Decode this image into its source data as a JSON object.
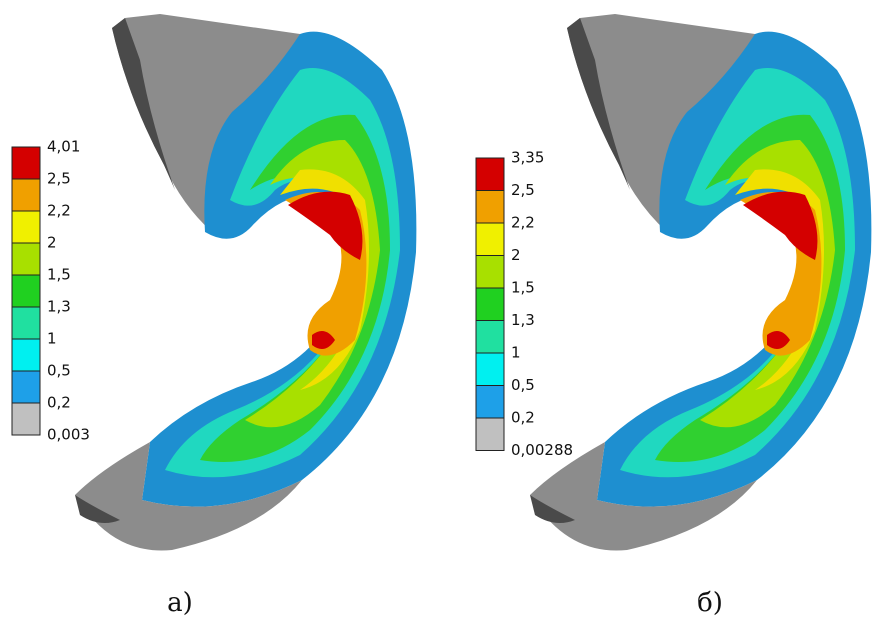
{
  "panels": [
    {
      "caption": "а)",
      "legend": [
        "4,01",
        "2,5",
        "2,2",
        "2",
        "1,5",
        "1,3",
        "1",
        "0,5",
        "0,2",
        "0,003"
      ]
    },
    {
      "caption": "б)",
      "legend": [
        "3,35",
        "2,5",
        "2,2",
        "2",
        "1,5",
        "1,3",
        "1",
        "0,5",
        "0,2",
        "0,00288"
      ]
    }
  ]
}
